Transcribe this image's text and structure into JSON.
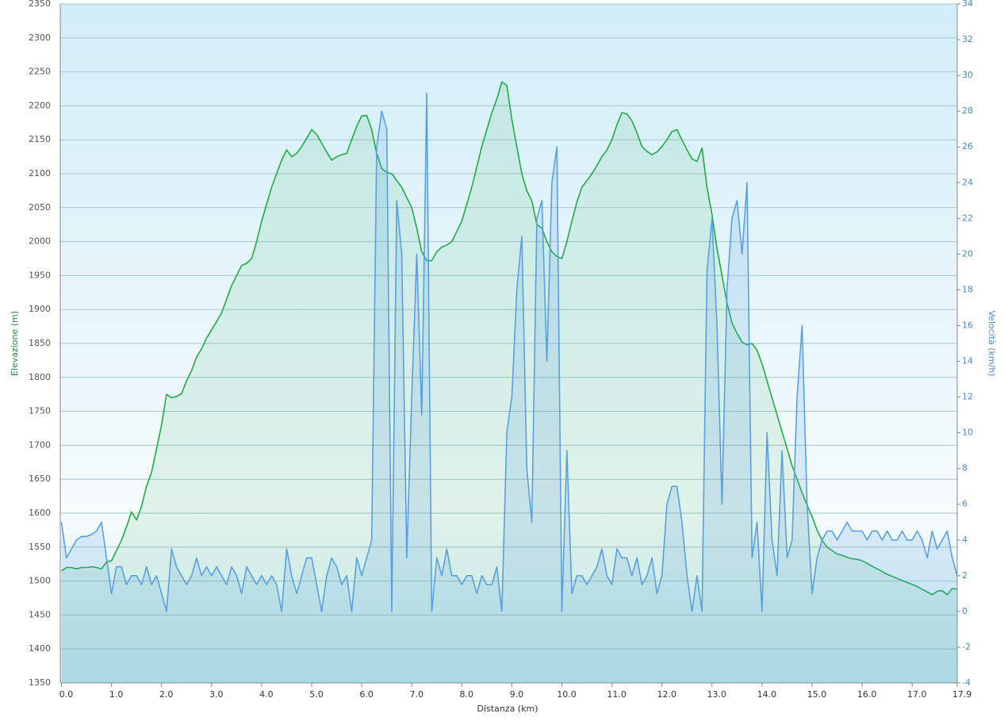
{
  "chart_data": {
    "type": "line",
    "xlabel": "Distanza  (km)",
    "ylabel": "Elevazione (m)",
    "y2label": "Velocità (km/h)",
    "x": [
      0,
      0.1,
      0.2,
      0.3,
      0.4,
      0.5,
      0.6,
      0.7,
      0.8,
      0.9,
      1,
      1.1,
      1.2,
      1.3,
      1.4,
      1.5,
      1.6,
      1.7,
      1.8,
      1.9,
      2,
      2.1,
      2.2,
      2.3,
      2.4,
      2.5,
      2.6,
      2.7,
      2.8,
      2.9,
      3,
      3.1,
      3.2,
      3.3,
      3.4,
      3.5,
      3.6,
      3.7,
      3.8,
      3.9,
      4,
      4.1,
      4.2,
      4.3,
      4.4,
      4.5,
      4.6,
      4.7,
      4.8,
      4.9,
      5,
      5.1,
      5.2,
      5.3,
      5.4,
      5.5,
      5.6,
      5.7,
      5.8,
      5.9,
      6,
      6.1,
      6.2,
      6.3,
      6.4,
      6.5,
      6.6,
      6.7,
      6.8,
      6.9,
      7,
      7.1,
      7.2,
      7.3,
      7.4,
      7.5,
      7.6,
      7.7,
      7.8,
      7.9,
      8,
      8.1,
      8.2,
      8.3,
      8.4,
      8.5,
      8.6,
      8.7,
      8.8,
      8.9,
      9,
      9.1,
      9.2,
      9.3,
      9.4,
      9.5,
      9.6,
      9.7,
      9.8,
      9.9,
      10,
      10.1,
      10.2,
      10.3,
      10.4,
      10.5,
      10.6,
      10.7,
      10.8,
      10.9,
      11,
      11.1,
      11.2,
      11.3,
      11.4,
      11.5,
      11.6,
      11.7,
      11.8,
      11.9,
      12,
      12.1,
      12.2,
      12.3,
      12.4,
      12.5,
      12.6,
      12.7,
      12.8,
      12.9,
      13,
      13.1,
      13.2,
      13.3,
      13.4,
      13.5,
      13.6,
      13.7,
      13.8,
      13.9,
      14,
      14.1,
      14.2,
      14.3,
      14.4,
      14.5,
      14.6,
      14.7,
      14.8,
      14.9,
      15,
      15.1,
      15.2,
      15.3,
      15.4,
      15.5,
      15.6,
      15.7,
      15.8,
      15.9,
      16,
      16.1,
      16.2,
      16.3,
      16.4,
      16.5,
      16.6,
      16.7,
      16.8,
      16.9,
      17,
      17.1,
      17.2,
      17.3,
      17.4,
      17.5,
      17.6,
      17.7,
      17.8,
      17.9
    ],
    "xlim": [
      0,
      17.9
    ],
    "xticks": [
      {
        "value": 0,
        "label": "0.0"
      },
      {
        "value": 1,
        "label": "1.0"
      },
      {
        "value": 2,
        "label": "2.0"
      },
      {
        "value": 3,
        "label": "3.0"
      },
      {
        "value": 4,
        "label": "4.0"
      },
      {
        "value": 5,
        "label": "5.0"
      },
      {
        "value": 6,
        "label": "6.0"
      },
      {
        "value": 7,
        "label": "7.0"
      },
      {
        "value": 8,
        "label": "8.0"
      },
      {
        "value": 9,
        "label": "9.0"
      },
      {
        "value": 10,
        "label": "10.0"
      },
      {
        "value": 11,
        "label": "11.0"
      },
      {
        "value": 12,
        "label": "12.0"
      },
      {
        "value": 13,
        "label": "13.0"
      },
      {
        "value": 14,
        "label": "14.0"
      },
      {
        "value": 15,
        "label": "15.0"
      },
      {
        "value": 16,
        "label": "16.0"
      },
      {
        "value": 17,
        "label": "17.0"
      },
      17.9
    ],
    "ylim": [
      1350,
      2350
    ],
    "yticks": [
      1350,
      1400,
      1450,
      1500,
      1550,
      1600,
      1650,
      1700,
      1750,
      1800,
      1850,
      1900,
      1950,
      2000,
      2050,
      2100,
      2150,
      2200,
      2250,
      2300,
      2350
    ],
    "y2lim": [
      -4,
      34
    ],
    "y2ticks": [
      -4,
      -2,
      0,
      2,
      4,
      6,
      8,
      10,
      12,
      14,
      16,
      18,
      20,
      22,
      24,
      26,
      28,
      30,
      32,
      34
    ],
    "grid": true,
    "series": [
      {
        "color": "#22aa44",
        "values": [
          1515,
          1520,
          1520,
          1518,
          1520,
          1520,
          1521,
          1520,
          1518,
          1528,
          1530,
          1545,
          1560,
          1580,
          1602,
          1590,
          1610,
          1640,
          1660,
          1695,
          1730,
          1775,
          1770,
          1772,
          1776,
          1795,
          1810,
          1830,
          1842,
          1858,
          1870,
          1882,
          1895,
          1915,
          1935,
          1950,
          1965,
          1968,
          1975,
          2000,
          2030,
          2055,
          2080,
          2100,
          2120,
          2135,
          2125,
          2130,
          2140,
          2152,
          2165,
          2158,
          2145,
          2132,
          2120,
          2125,
          2128,
          2130,
          2150,
          2170,
          2185,
          2186,
          2165,
          2130,
          2108,
          2102,
          2100,
          2090,
          2080,
          2065,
          2050,
          2020,
          1985,
          1972,
          1972,
          1985,
          1992,
          1995,
          2000,
          2015,
          2030,
          2055,
          2080,
          2110,
          2140,
          2165,
          2190,
          2210,
          2235,
          2230,
          2180,
          2140,
          2100,
          2075,
          2060,
          2025,
          2020,
          2000,
          1985,
          1978,
          1975,
          2000,
          2030,
          2058,
          2080,
          2090,
          2100,
          2112,
          2125,
          2135,
          2150,
          2172,
          2190,
          2188,
          2178,
          2160,
          2140,
          2133,
          2128,
          2132,
          2140,
          2150,
          2162,
          2165,
          2150,
          2135,
          2122,
          2118,
          2138,
          2080,
          2040,
          1990,
          1950,
          1910,
          1880,
          1865,
          1852,
          1848,
          1850,
          1840,
          1820,
          1795,
          1770,
          1745,
          1720,
          1695,
          1670,
          1650,
          1630,
          1612,
          1595,
          1575,
          1560,
          1550,
          1545,
          1540,
          1538,
          1535,
          1533,
          1532,
          1530,
          1526,
          1522,
          1518,
          1514,
          1510,
          1507,
          1504,
          1501,
          1498,
          1495,
          1492,
          1488,
          1484,
          1480,
          1485,
          1486,
          1480,
          1489,
          1488
        ]
      },
      {
        "color": "#5aa0e0",
        "axis": "y2",
        "values": [
          5,
          3,
          3.5,
          4,
          4.2,
          4.2,
          4.3,
          4.5,
          5,
          3,
          1,
          2.5,
          2.5,
          1.5,
          2,
          2,
          1.5,
          2.5,
          1.5,
          2,
          1,
          0,
          3.5,
          2.5,
          2,
          1.5,
          2,
          3,
          2,
          2.5,
          2,
          2.5,
          2,
          1.5,
          2.5,
          2,
          1,
          2.5,
          2,
          1.5,
          2,
          1.5,
          2,
          1.5,
          0,
          3.5,
          2,
          1,
          2,
          3,
          3,
          1.5,
          0,
          2,
          3,
          2.5,
          1.5,
          2,
          0,
          3,
          2,
          3,
          4,
          26,
          28,
          27,
          0,
          23,
          20,
          3,
          12,
          20,
          11,
          29,
          0,
          3,
          2,
          3.5,
          2,
          2,
          1.5,
          2,
          2,
          1,
          2,
          1.5,
          1.5,
          2.5,
          0,
          10,
          12,
          18,
          21,
          8,
          5,
          22,
          23,
          14,
          24,
          26,
          0,
          9,
          1,
          2,
          2,
          1.5,
          2,
          2.5,
          3.5,
          2,
          1.5,
          3.5,
          3,
          3,
          2,
          3,
          1.5,
          2,
          3,
          1,
          2,
          6,
          7,
          7,
          5,
          2,
          0,
          2,
          0,
          19,
          22,
          16,
          6,
          18,
          22,
          23,
          20,
          24,
          3,
          5,
          0,
          10,
          4,
          2,
          9,
          3,
          4,
          12,
          16,
          6,
          1,
          3,
          4,
          4.5,
          4.5,
          4,
          4.5,
          5,
          4.5,
          4.5,
          4.5,
          4,
          4.5,
          4.5,
          4,
          4.5,
          4,
          4,
          4.5,
          4,
          4,
          4.5,
          4,
          3,
          4.5,
          3.5,
          4,
          4.5,
          3,
          2
        ]
      }
    ]
  }
}
